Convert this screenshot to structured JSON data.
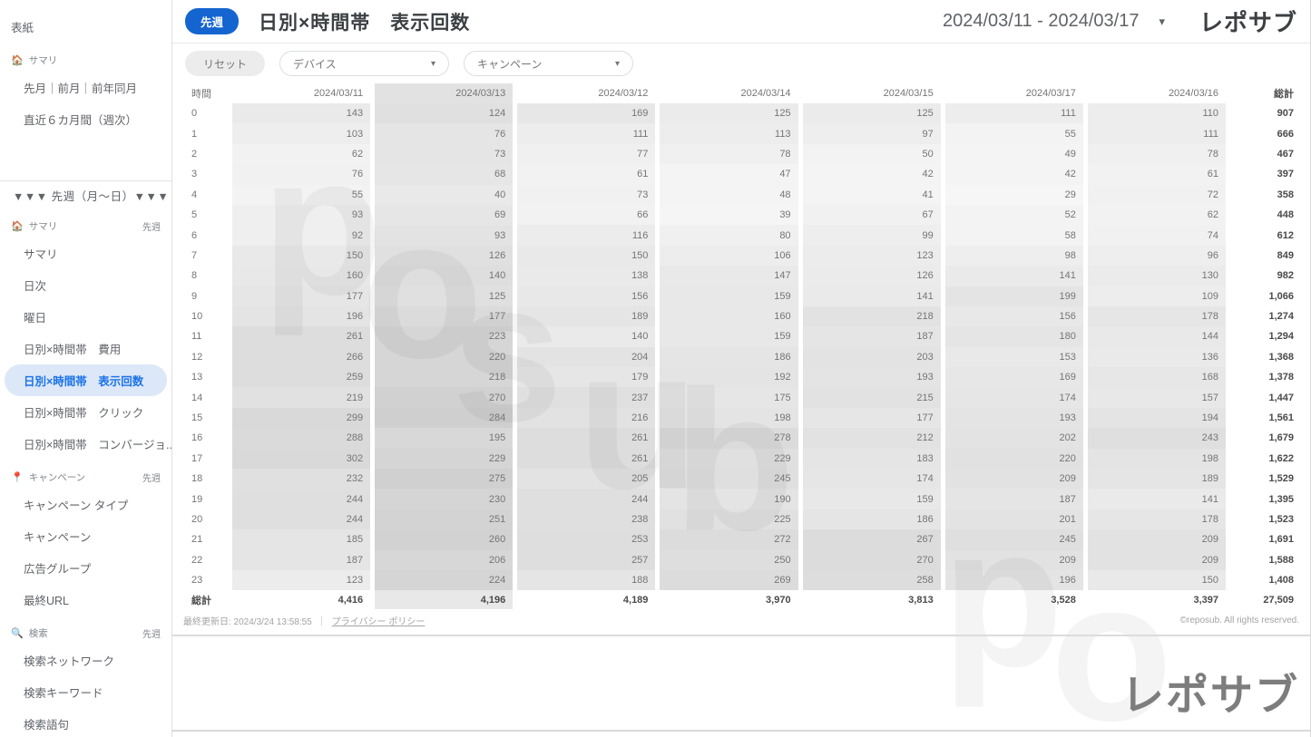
{
  "header": {
    "badge": "先週",
    "title": "日別×時間帯　表示回数",
    "date_range": "2024/03/11 - 2024/03/17",
    "logo": "レポサブ"
  },
  "icons": {
    "caret": "▾"
  },
  "filters": {
    "reset_label": "リセット",
    "device_label": "デバイス",
    "campaign_label": "キャンペーン"
  },
  "sidebar": {
    "items": [
      {
        "type": "link",
        "label": "表紙"
      },
      {
        "type": "section",
        "icon": "house-icon",
        "emoji": "🏠",
        "label": "サマリ"
      },
      {
        "type": "link",
        "indent": true,
        "label": "先月｜前月｜前年同月"
      },
      {
        "type": "link",
        "indent": true,
        "label": "直近６カ月間（週次）"
      },
      {
        "type": "divider"
      },
      {
        "type": "header",
        "label": "▼▼▼ 先週（月〜日）▼▼▼"
      },
      {
        "type": "section",
        "icon": "house-icon",
        "emoji": "🏠",
        "label": "サマリ",
        "tag": "先週"
      },
      {
        "type": "link",
        "indent": true,
        "label": "サマリ"
      },
      {
        "type": "link",
        "indent": true,
        "label": "日次"
      },
      {
        "type": "link",
        "indent": true,
        "label": "曜日"
      },
      {
        "type": "link",
        "indent": true,
        "label": "日別×時間帯　費用"
      },
      {
        "type": "link",
        "indent": true,
        "selected": true,
        "label": "日別×時間帯　表示回数"
      },
      {
        "type": "link",
        "indent": true,
        "label": "日別×時間帯　クリック"
      },
      {
        "type": "link",
        "indent": true,
        "label": "日別×時間帯　コンバージョ..."
      },
      {
        "type": "section",
        "icon": "pin-icon",
        "emoji": "📍",
        "label": "キャンペーン",
        "tag": "先週"
      },
      {
        "type": "link",
        "indent": true,
        "label": "キャンペーン タイプ"
      },
      {
        "type": "link",
        "indent": true,
        "label": "キャンペーン"
      },
      {
        "type": "link",
        "indent": true,
        "label": "広告グループ"
      },
      {
        "type": "link",
        "indent": true,
        "label": "最終URL"
      },
      {
        "type": "section",
        "icon": "search-icon",
        "emoji": "🔍",
        "label": "検索",
        "tag": "先週"
      },
      {
        "type": "link",
        "indent": true,
        "label": "検索ネットワーク"
      },
      {
        "type": "link",
        "indent": true,
        "label": "検索キーワード"
      },
      {
        "type": "link",
        "indent": true,
        "label": "検索語句"
      }
    ]
  },
  "table": {
    "hour_header": "時間",
    "total_header": "総計",
    "columns": [
      "2024/03/11",
      "2024/03/13",
      "2024/03/12",
      "2024/03/14",
      "2024/03/15",
      "2024/03/17",
      "2024/03/16"
    ],
    "highlighted_column_index": 1,
    "rows": [
      {
        "hour": "0",
        "values": [
          143,
          124,
          169,
          125,
          125,
          111,
          110
        ],
        "total": "907"
      },
      {
        "hour": "1",
        "values": [
          103,
          76,
          111,
          113,
          97,
          55,
          111
        ],
        "total": "666"
      },
      {
        "hour": "2",
        "values": [
          62,
          73,
          77,
          78,
          50,
          49,
          78
        ],
        "total": "467"
      },
      {
        "hour": "3",
        "values": [
          76,
          68,
          61,
          47,
          42,
          42,
          61
        ],
        "total": "397"
      },
      {
        "hour": "4",
        "values": [
          55,
          40,
          73,
          48,
          41,
          29,
          72
        ],
        "total": "358"
      },
      {
        "hour": "5",
        "values": [
          93,
          69,
          66,
          39,
          67,
          52,
          62
        ],
        "total": "448"
      },
      {
        "hour": "6",
        "values": [
          92,
          93,
          116,
          80,
          99,
          58,
          74
        ],
        "total": "612"
      },
      {
        "hour": "7",
        "values": [
          150,
          126,
          150,
          106,
          123,
          98,
          96
        ],
        "total": "849"
      },
      {
        "hour": "8",
        "values": [
          160,
          140,
          138,
          147,
          126,
          141,
          130
        ],
        "total": "982"
      },
      {
        "hour": "9",
        "values": [
          177,
          125,
          156,
          159,
          141,
          199,
          109
        ],
        "total": "1,066"
      },
      {
        "hour": "10",
        "values": [
          196,
          177,
          189,
          160,
          218,
          156,
          178
        ],
        "total": "1,274"
      },
      {
        "hour": "11",
        "values": [
          261,
          223,
          140,
          159,
          187,
          180,
          144
        ],
        "total": "1,294"
      },
      {
        "hour": "12",
        "values": [
          266,
          220,
          204,
          186,
          203,
          153,
          136
        ],
        "total": "1,368"
      },
      {
        "hour": "13",
        "values": [
          259,
          218,
          179,
          192,
          193,
          169,
          168
        ],
        "total": "1,378"
      },
      {
        "hour": "14",
        "values": [
          219,
          270,
          237,
          175,
          215,
          174,
          157
        ],
        "total": "1,447"
      },
      {
        "hour": "15",
        "values": [
          299,
          284,
          216,
          198,
          177,
          193,
          194
        ],
        "total": "1,561"
      },
      {
        "hour": "16",
        "values": [
          288,
          195,
          261,
          278,
          212,
          202,
          243
        ],
        "total": "1,679"
      },
      {
        "hour": "17",
        "values": [
          302,
          229,
          261,
          229,
          183,
          220,
          198
        ],
        "total": "1,622"
      },
      {
        "hour": "18",
        "values": [
          232,
          275,
          205,
          245,
          174,
          209,
          189
        ],
        "total": "1,529"
      },
      {
        "hour": "19",
        "values": [
          244,
          230,
          244,
          190,
          159,
          187,
          141
        ],
        "total": "1,395"
      },
      {
        "hour": "20",
        "values": [
          244,
          251,
          238,
          225,
          186,
          201,
          178
        ],
        "total": "1,523"
      },
      {
        "hour": "21",
        "values": [
          185,
          260,
          253,
          272,
          267,
          245,
          209
        ],
        "total": "1,691"
      },
      {
        "hour": "22",
        "values": [
          187,
          206,
          257,
          250,
          270,
          209,
          209
        ],
        "total": "1,588"
      },
      {
        "hour": "23",
        "values": [
          123,
          224,
          188,
          269,
          258,
          196,
          150
        ],
        "total": "1,408"
      }
    ],
    "totals": {
      "label": "総計",
      "values": [
        "4,416",
        "4,196",
        "4,189",
        "3,970",
        "3,813",
        "3,528",
        "3,397"
      ],
      "grand_total": "27,509"
    }
  },
  "footer": {
    "last_updated": "最終更新日: 2024/3/24 13:58:55",
    "separator": "｜",
    "privacy_label": "プライバシー ポリシー",
    "copyright": "©reposub. All rights reserved.",
    "big_logo": "レポサブ"
  },
  "watermark": {
    "letters": [
      "r",
      "e",
      "p",
      "o",
      "s",
      "u",
      "b",
      "p",
      "o"
    ]
  },
  "colors": {
    "accent_blue": "#1565d0",
    "selected_bg": "#dce7f8",
    "selected_text": "#1a73e8"
  }
}
